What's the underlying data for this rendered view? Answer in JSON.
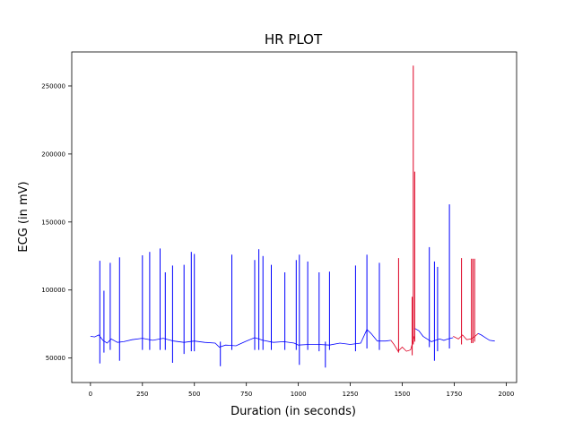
{
  "chart_data": {
    "type": "line",
    "title": "HR PLOT",
    "xlabel": "Duration (in seconds)",
    "ylabel": "ECG (in mV)",
    "xlim": [
      -90,
      2050
    ],
    "ylim": [
      32000,
      275000
    ],
    "xticks": [
      0,
      250,
      500,
      750,
      1000,
      1250,
      1500,
      1750,
      2000
    ],
    "yticks": [
      50000,
      100000,
      150000,
      200000,
      250000
    ],
    "grid": false,
    "legend": "none",
    "colors": {
      "normal": "#0000ff",
      "abnormal": "#dd0022",
      "axes": "#000000"
    },
    "baseline": [
      [
        0,
        66000
      ],
      [
        20,
        65500
      ],
      [
        40,
        67000
      ],
      [
        60,
        63000
      ],
      [
        80,
        61000
      ],
      [
        100,
        64000
      ],
      [
        130,
        61500
      ],
      [
        160,
        62000
      ],
      [
        200,
        63500
      ],
      [
        250,
        64500
      ],
      [
        300,
        63000
      ],
      [
        350,
        64500
      ],
      [
        400,
        62500
      ],
      [
        450,
        61500
      ],
      [
        500,
        62500
      ],
      [
        550,
        61500
      ],
      [
        600,
        61000
      ],
      [
        620,
        58000
      ],
      [
        650,
        59500
      ],
      [
        700,
        59000
      ],
      [
        750,
        62500
      ],
      [
        790,
        65000
      ],
      [
        830,
        63000
      ],
      [
        880,
        61500
      ],
      [
        930,
        62000
      ],
      [
        980,
        61000
      ],
      [
        1000,
        59500
      ],
      [
        1050,
        60000
      ],
      [
        1100,
        60000
      ],
      [
        1150,
        59500
      ],
      [
        1200,
        61000
      ],
      [
        1250,
        60000
      ],
      [
        1300,
        61000
      ],
      [
        1330,
        71000
      ],
      [
        1350,
        68000
      ],
      [
        1380,
        62500
      ],
      [
        1420,
        62500
      ],
      [
        1445,
        63000
      ]
    ],
    "red_baseline_1": [
      [
        1445,
        63000
      ],
      [
        1460,
        60000
      ],
      [
        1480,
        55000
      ],
      [
        1500,
        58000
      ],
      [
        1520,
        55000
      ],
      [
        1540,
        56000
      ],
      [
        1558,
        66000
      ]
    ],
    "blue_baseline_2": [
      [
        1558,
        72000
      ],
      [
        1580,
        70000
      ],
      [
        1600,
        66000
      ],
      [
        1620,
        64000
      ],
      [
        1640,
        62000
      ],
      [
        1660,
        63000
      ],
      [
        1680,
        64000
      ],
      [
        1700,
        63000
      ],
      [
        1720,
        64000
      ],
      [
        1745,
        65000
      ]
    ],
    "red_baseline_2": [
      [
        1745,
        66000
      ],
      [
        1770,
        64000
      ],
      [
        1790,
        67000
      ],
      [
        1810,
        63500
      ],
      [
        1830,
        64000
      ],
      [
        1850,
        66000
      ],
      [
        1865,
        68000
      ]
    ],
    "blue_baseline_3": [
      [
        1865,
        68000
      ],
      [
        1880,
        67000
      ],
      [
        1900,
        65000
      ],
      [
        1920,
        63000
      ],
      [
        1945,
        62500
      ]
    ],
    "blue_spikes": [
      [
        45,
        121500,
        46000
      ],
      [
        65,
        99500,
        54000
      ],
      [
        95,
        120000,
        56000
      ],
      [
        140,
        124000,
        48000
      ],
      [
        250,
        125500,
        56000
      ],
      [
        285,
        128000,
        56000
      ],
      [
        335,
        130500,
        56000
      ],
      [
        360,
        113000,
        56000
      ],
      [
        395,
        118000,
        46500
      ],
      [
        450,
        118500,
        53000
      ],
      [
        485,
        128000,
        55000
      ],
      [
        500,
        126500,
        55000
      ],
      [
        625,
        62000,
        44000
      ],
      [
        680,
        126000,
        56000
      ],
      [
        790,
        122000,
        56000
      ],
      [
        810,
        130000,
        56000
      ],
      [
        830,
        125000,
        56000
      ],
      [
        870,
        118500,
        56000
      ],
      [
        935,
        113000,
        56000
      ],
      [
        990,
        122000,
        56000
      ],
      [
        1005,
        126000,
        45000
      ],
      [
        1045,
        121000,
        56000
      ],
      [
        1100,
        113000,
        55000
      ],
      [
        1130,
        62000,
        43000
      ],
      [
        1150,
        113500,
        56000
      ],
      [
        1275,
        118000,
        55000
      ],
      [
        1330,
        126000,
        57000
      ],
      [
        1390,
        120000,
        56000
      ],
      [
        1630,
        131500,
        58000
      ],
      [
        1655,
        121000,
        48000
      ],
      [
        1670,
        117000,
        55000
      ],
      [
        1727,
        163000,
        57000
      ]
    ],
    "red_spikes": [
      [
        1482,
        123500,
        54000
      ],
      [
        1548,
        95000,
        52000
      ],
      [
        1553,
        265000,
        60000
      ],
      [
        1560,
        187000,
        62000
      ],
      [
        1785,
        123500,
        60000
      ],
      [
        1833,
        123000,
        61000
      ],
      [
        1840,
        123000,
        61000
      ],
      [
        1848,
        123000,
        62000
      ]
    ]
  }
}
